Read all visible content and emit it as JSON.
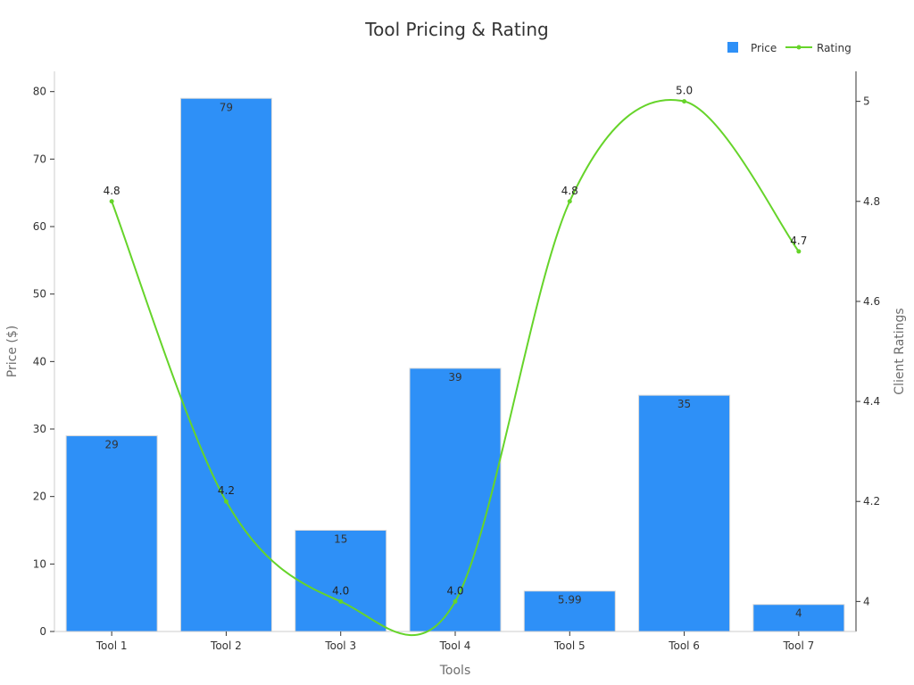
{
  "chart_data": {
    "type": "bar",
    "title": "Tool Pricing & Rating",
    "xlabel": "Tools",
    "ylabel": "Price ($)",
    "y2label": "Client Ratings",
    "categories": [
      "Tool 1",
      "Tool 2",
      "Tool 3",
      "Tool 4",
      "Tool 5",
      "Tool 6",
      "Tool 7"
    ],
    "ylim": [
      0,
      83
    ],
    "y2lim": [
      3.94,
      5.06
    ],
    "yticks": [
      0,
      10,
      20,
      30,
      40,
      50,
      60,
      70,
      80
    ],
    "y2ticks": [
      4,
      4.2,
      4.4,
      4.6,
      4.8,
      5
    ],
    "y2tick_labels": [
      "4",
      "4.2",
      "4.4",
      "4.6",
      "4.8",
      "5"
    ],
    "legend_position": "top-right",
    "grid": false,
    "series": [
      {
        "name": "Price",
        "type": "bar",
        "axis": "left",
        "color": "#2e90f7",
        "values": [
          29,
          79,
          15,
          39,
          5.99,
          35,
          4
        ],
        "labels": [
          "29",
          "79",
          "15",
          "39",
          "5.99",
          "35",
          "4"
        ]
      },
      {
        "name": "Rating",
        "type": "line",
        "smooth": true,
        "axis": "right",
        "color": "#66d42a",
        "values": [
          4.8,
          4.2,
          4.0,
          4.0,
          4.8,
          5.0,
          4.7
        ],
        "labels": [
          "4.8",
          "4.2",
          "4.0",
          "4.0",
          "4.8",
          "5.0",
          "4.7"
        ]
      }
    ]
  }
}
